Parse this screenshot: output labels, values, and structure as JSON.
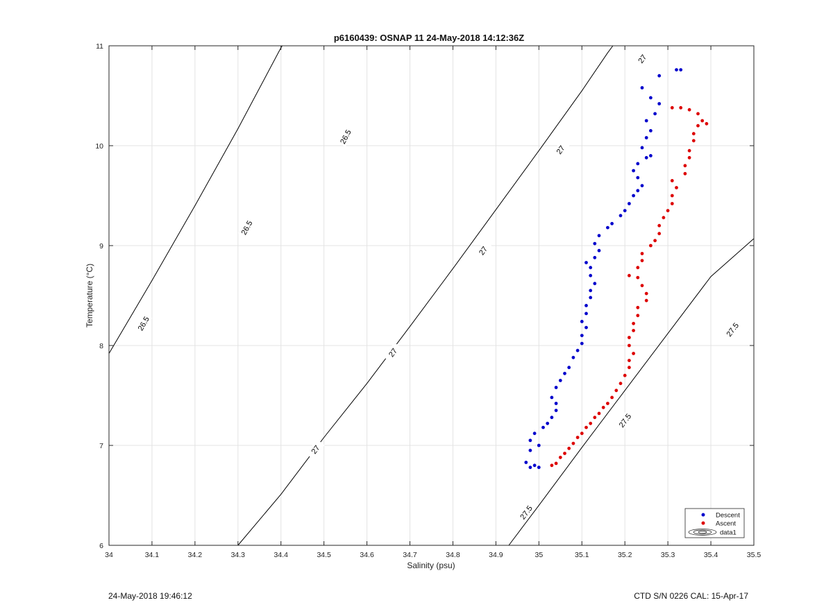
{
  "footer": {
    "left": "24-May-2018 19:46:12",
    "right": "CTD S/N 0226  CAL: 15-Apr-17"
  },
  "chart_data": {
    "type": "scatter",
    "title": "p6160439: OSNAP 11 24-May-2018 14:12:36Z",
    "xlabel": "Salinity (psu)",
    "ylabel": "Temperature (°C)",
    "xlim": [
      34,
      35.5
    ],
    "ylim": [
      6,
      11
    ],
    "xticks": [
      "34",
      "34.1",
      "34.2",
      "34.3",
      "34.4",
      "34.5",
      "34.6",
      "34.7",
      "34.8",
      "34.9",
      "35",
      "35.1",
      "35.2",
      "35.3",
      "35.4",
      "35.5"
    ],
    "yticks": [
      "6",
      "7",
      "8",
      "9",
      "10",
      "11"
    ],
    "grid": true,
    "legend_position": "bottom-right",
    "legend": [
      "Descent",
      "Ascent",
      "data1"
    ],
    "series": [
      {
        "name": "Descent",
        "color": "#0000cc",
        "points": [
          [
            34.97,
            6.83
          ],
          [
            34.98,
            6.78
          ],
          [
            34.99,
            6.8
          ],
          [
            35.0,
            6.78
          ],
          [
            34.98,
            6.95
          ],
          [
            35.0,
            7.0
          ],
          [
            34.98,
            7.05
          ],
          [
            34.99,
            7.12
          ],
          [
            35.01,
            7.18
          ],
          [
            35.02,
            7.22
          ],
          [
            35.03,
            7.28
          ],
          [
            35.04,
            7.35
          ],
          [
            35.04,
            7.42
          ],
          [
            35.03,
            7.48
          ],
          [
            35.04,
            7.58
          ],
          [
            35.05,
            7.65
          ],
          [
            35.06,
            7.72
          ],
          [
            35.07,
            7.78
          ],
          [
            35.08,
            7.88
          ],
          [
            35.09,
            7.95
          ],
          [
            35.1,
            8.02
          ],
          [
            35.1,
            8.1
          ],
          [
            35.11,
            8.18
          ],
          [
            35.1,
            8.24
          ],
          [
            35.11,
            8.32
          ],
          [
            35.11,
            8.4
          ],
          [
            35.12,
            8.48
          ],
          [
            35.12,
            8.55
          ],
          [
            35.13,
            8.62
          ],
          [
            35.12,
            8.7
          ],
          [
            35.12,
            8.78
          ],
          [
            35.11,
            8.83
          ],
          [
            35.13,
            8.88
          ],
          [
            35.14,
            8.95
          ],
          [
            35.13,
            9.02
          ],
          [
            35.14,
            9.1
          ],
          [
            35.16,
            9.18
          ],
          [
            35.17,
            9.22
          ],
          [
            35.19,
            9.3
          ],
          [
            35.2,
            9.35
          ],
          [
            35.21,
            9.42
          ],
          [
            35.22,
            9.5
          ],
          [
            35.23,
            9.55
          ],
          [
            35.24,
            9.6
          ],
          [
            35.23,
            9.68
          ],
          [
            35.22,
            9.75
          ],
          [
            35.23,
            9.82
          ],
          [
            35.25,
            9.88
          ],
          [
            35.26,
            9.9
          ],
          [
            35.24,
            9.98
          ],
          [
            35.25,
            10.08
          ],
          [
            35.26,
            10.15
          ],
          [
            35.25,
            10.25
          ],
          [
            35.27,
            10.32
          ],
          [
            35.28,
            10.42
          ],
          [
            35.26,
            10.48
          ],
          [
            35.24,
            10.58
          ],
          [
            35.28,
            10.7
          ],
          [
            35.32,
            10.76
          ],
          [
            35.33,
            10.76
          ]
        ]
      },
      {
        "name": "Ascent",
        "color": "#dd0000",
        "points": [
          [
            35.03,
            6.8
          ],
          [
            35.04,
            6.82
          ],
          [
            35.05,
            6.88
          ],
          [
            35.06,
            6.92
          ],
          [
            35.07,
            6.97
          ],
          [
            35.08,
            7.02
          ],
          [
            35.09,
            7.08
          ],
          [
            35.1,
            7.12
          ],
          [
            35.11,
            7.18
          ],
          [
            35.12,
            7.22
          ],
          [
            35.13,
            7.28
          ],
          [
            35.14,
            7.32
          ],
          [
            35.15,
            7.38
          ],
          [
            35.16,
            7.42
          ],
          [
            35.17,
            7.48
          ],
          [
            35.18,
            7.55
          ],
          [
            35.19,
            7.62
          ],
          [
            35.2,
            7.7
          ],
          [
            35.21,
            7.78
          ],
          [
            35.21,
            7.85
          ],
          [
            35.22,
            7.92
          ],
          [
            35.21,
            8.0
          ],
          [
            35.21,
            8.08
          ],
          [
            35.22,
            8.15
          ],
          [
            35.22,
            8.22
          ],
          [
            35.23,
            8.3
          ],
          [
            35.23,
            8.38
          ],
          [
            35.25,
            8.45
          ],
          [
            35.25,
            8.52
          ],
          [
            35.24,
            8.6
          ],
          [
            35.23,
            8.68
          ],
          [
            35.21,
            8.7
          ],
          [
            35.23,
            8.78
          ],
          [
            35.24,
            8.85
          ],
          [
            35.24,
            8.92
          ],
          [
            35.26,
            9.0
          ],
          [
            35.27,
            9.05
          ],
          [
            35.28,
            9.12
          ],
          [
            35.28,
            9.2
          ],
          [
            35.29,
            9.28
          ],
          [
            35.3,
            9.35
          ],
          [
            35.31,
            9.42
          ],
          [
            35.31,
            9.5
          ],
          [
            35.32,
            9.58
          ],
          [
            35.31,
            9.65
          ],
          [
            35.34,
            9.72
          ],
          [
            35.34,
            9.8
          ],
          [
            35.35,
            9.88
          ],
          [
            35.35,
            9.95
          ],
          [
            35.36,
            10.05
          ],
          [
            35.36,
            10.12
          ],
          [
            35.37,
            10.2
          ],
          [
            35.38,
            10.25
          ],
          [
            35.37,
            10.32
          ],
          [
            35.35,
            10.36
          ],
          [
            35.33,
            10.38
          ],
          [
            35.31,
            10.38
          ],
          [
            35.39,
            10.22
          ]
        ]
      }
    ],
    "contours": [
      {
        "label": "26.5",
        "points": [
          [
            34.0,
            7.92
          ],
          [
            34.1,
            8.65
          ],
          [
            34.2,
            9.4
          ],
          [
            34.3,
            10.17
          ],
          [
            34.4,
            10.98
          ],
          [
            34.403,
            11.0
          ]
        ],
        "label_at": [
          [
            34.08,
            8.22
          ],
          [
            34.32,
            9.18
          ],
          [
            34.55,
            10.09
          ]
        ]
      },
      {
        "label": "27",
        "points": [
          [
            34.3,
            6.0
          ],
          [
            34.4,
            6.51
          ],
          [
            34.5,
            7.08
          ],
          [
            34.6,
            7.62
          ],
          [
            34.7,
            8.19
          ],
          [
            34.8,
            8.77
          ],
          [
            34.9,
            9.36
          ],
          [
            35.0,
            9.95
          ],
          [
            35.1,
            10.55
          ],
          [
            35.16,
            10.93
          ],
          [
            35.172,
            11.0
          ]
        ],
        "label_at": [
          [
            34.48,
            6.96
          ],
          [
            34.66,
            7.93
          ],
          [
            34.87,
            8.95
          ],
          [
            35.05,
            9.96
          ],
          [
            35.24,
            10.87
          ]
        ]
      },
      {
        "label": "27.5",
        "points": [
          [
            34.93,
            6.0
          ],
          [
            35.0,
            6.4
          ],
          [
            35.1,
            6.98
          ],
          [
            35.2,
            7.55
          ],
          [
            35.3,
            8.12
          ],
          [
            35.4,
            8.69
          ],
          [
            35.5,
            9.07
          ]
        ],
        "label_at": [
          [
            34.97,
            6.33
          ],
          [
            35.2,
            7.25
          ],
          [
            35.45,
            8.16
          ]
        ]
      }
    ]
  }
}
